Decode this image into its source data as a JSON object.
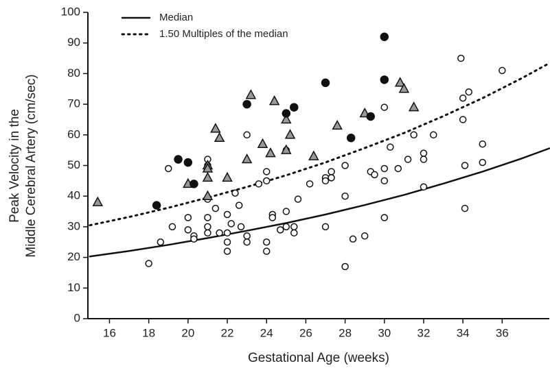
{
  "chart_data": {
    "type": "scatter",
    "xlabel": "Gestational Age (weeks)",
    "ylabel": [
      "Peak Velocity in the",
      "Middle Cerebral Artery (cm/sec)"
    ],
    "xlim": [
      14.9,
      38.4
    ],
    "ylim": [
      0,
      100
    ],
    "xticks": [
      16,
      18,
      20,
      22,
      24,
      26,
      28,
      30,
      32,
      34,
      36
    ],
    "yticks": [
      0,
      10,
      20,
      30,
      40,
      50,
      60,
      70,
      80,
      90,
      100
    ],
    "legend": "top-left",
    "series": [
      {
        "kind": "line",
        "name": "Median",
        "dash": "solid",
        "color": "#111",
        "x": [
          15,
          17,
          19,
          21,
          23,
          25,
          27,
          29,
          31,
          33,
          35,
          37,
          38.4
        ],
        "values": [
          20.3,
          22.1,
          24.1,
          26.3,
          28.7,
          31.2,
          34.0,
          37.1,
          40.4,
          44.1,
          48.0,
          52.3,
          55.6
        ]
      },
      {
        "kind": "line",
        "name": "1.50 Multiples of the median",
        "dash": "dotted",
        "color": "#111",
        "x": [
          15,
          17,
          19,
          21,
          23,
          25,
          27,
          29,
          31,
          33,
          35,
          37,
          38.4
        ],
        "values": [
          30.5,
          33.2,
          36.2,
          39.5,
          43.0,
          46.8,
          51.0,
          55.7,
          60.6,
          66.1,
          72.0,
          78.5,
          83.4
        ]
      },
      {
        "kind": "scatter",
        "marker": "circle",
        "color": "#111",
        "fill": "#ffffff",
        "x": [
          18,
          18.6,
          19,
          19.2,
          20,
          20,
          20.3,
          20.3,
          21,
          21,
          21,
          21,
          21,
          21,
          21.4,
          21.6,
          22,
          22,
          22,
          22,
          22.2,
          22.4,
          22.6,
          22.7,
          23,
          23,
          23,
          23.6,
          24,
          24,
          24,
          24,
          24.3,
          24.3,
          24.7,
          25,
          25,
          25,
          25.4,
          25.4,
          25.6,
          26.2,
          27,
          27,
          27,
          27.3,
          27.3,
          28,
          28,
          28,
          28.4,
          29,
          29.3,
          29.5,
          30,
          30,
          30,
          30,
          30.3,
          30.7,
          31.2,
          31.5,
          32,
          32,
          32,
          32.5,
          33.9,
          34,
          34,
          34.1,
          34.1,
          34.3,
          35,
          35,
          36
        ],
        "values": [
          18,
          25,
          49,
          30,
          33,
          29,
          27,
          26,
          52,
          50,
          39,
          33,
          30,
          28,
          36,
          28,
          34,
          28,
          25,
          22,
          31,
          41,
          37,
          30,
          60,
          27,
          25,
          44,
          48,
          45,
          25,
          22,
          34,
          33,
          29,
          55,
          35,
          30,
          30,
          28,
          39,
          44,
          46,
          45,
          30,
          48,
          46,
          50,
          40,
          17,
          26,
          27,
          48,
          47,
          69,
          49,
          45,
          33,
          56,
          49,
          52,
          60,
          54,
          52,
          43,
          60,
          85,
          72,
          65,
          50,
          36,
          74,
          57,
          51,
          81
        ]
      },
      {
        "kind": "scatter",
        "marker": "triangle",
        "color": "#111",
        "fill": "#999999",
        "x": [
          15.4,
          20,
          21,
          21,
          21,
          21,
          21.4,
          21.6,
          22,
          23,
          23.2,
          23.8,
          24.2,
          24.4,
          25,
          25,
          25.2,
          26.4,
          27.6,
          29,
          30.8,
          31,
          31.5
        ],
        "values": [
          38,
          44,
          50,
          49,
          46,
          40,
          62,
          59,
          46,
          52,
          73,
          57,
          54,
          71,
          65,
          55,
          60,
          53,
          63,
          67,
          77,
          75,
          69
        ]
      },
      {
        "kind": "scatter",
        "marker": "circle",
        "color": "#111",
        "fill": "#111111",
        "x": [
          18.4,
          19.5,
          20,
          20.3,
          23,
          25,
          25.4,
          27,
          28.3,
          29.3,
          30,
          30
        ],
        "values": [
          37,
          52,
          51,
          44,
          70,
          67,
          69,
          77,
          59,
          66,
          92,
          78
        ]
      }
    ]
  }
}
